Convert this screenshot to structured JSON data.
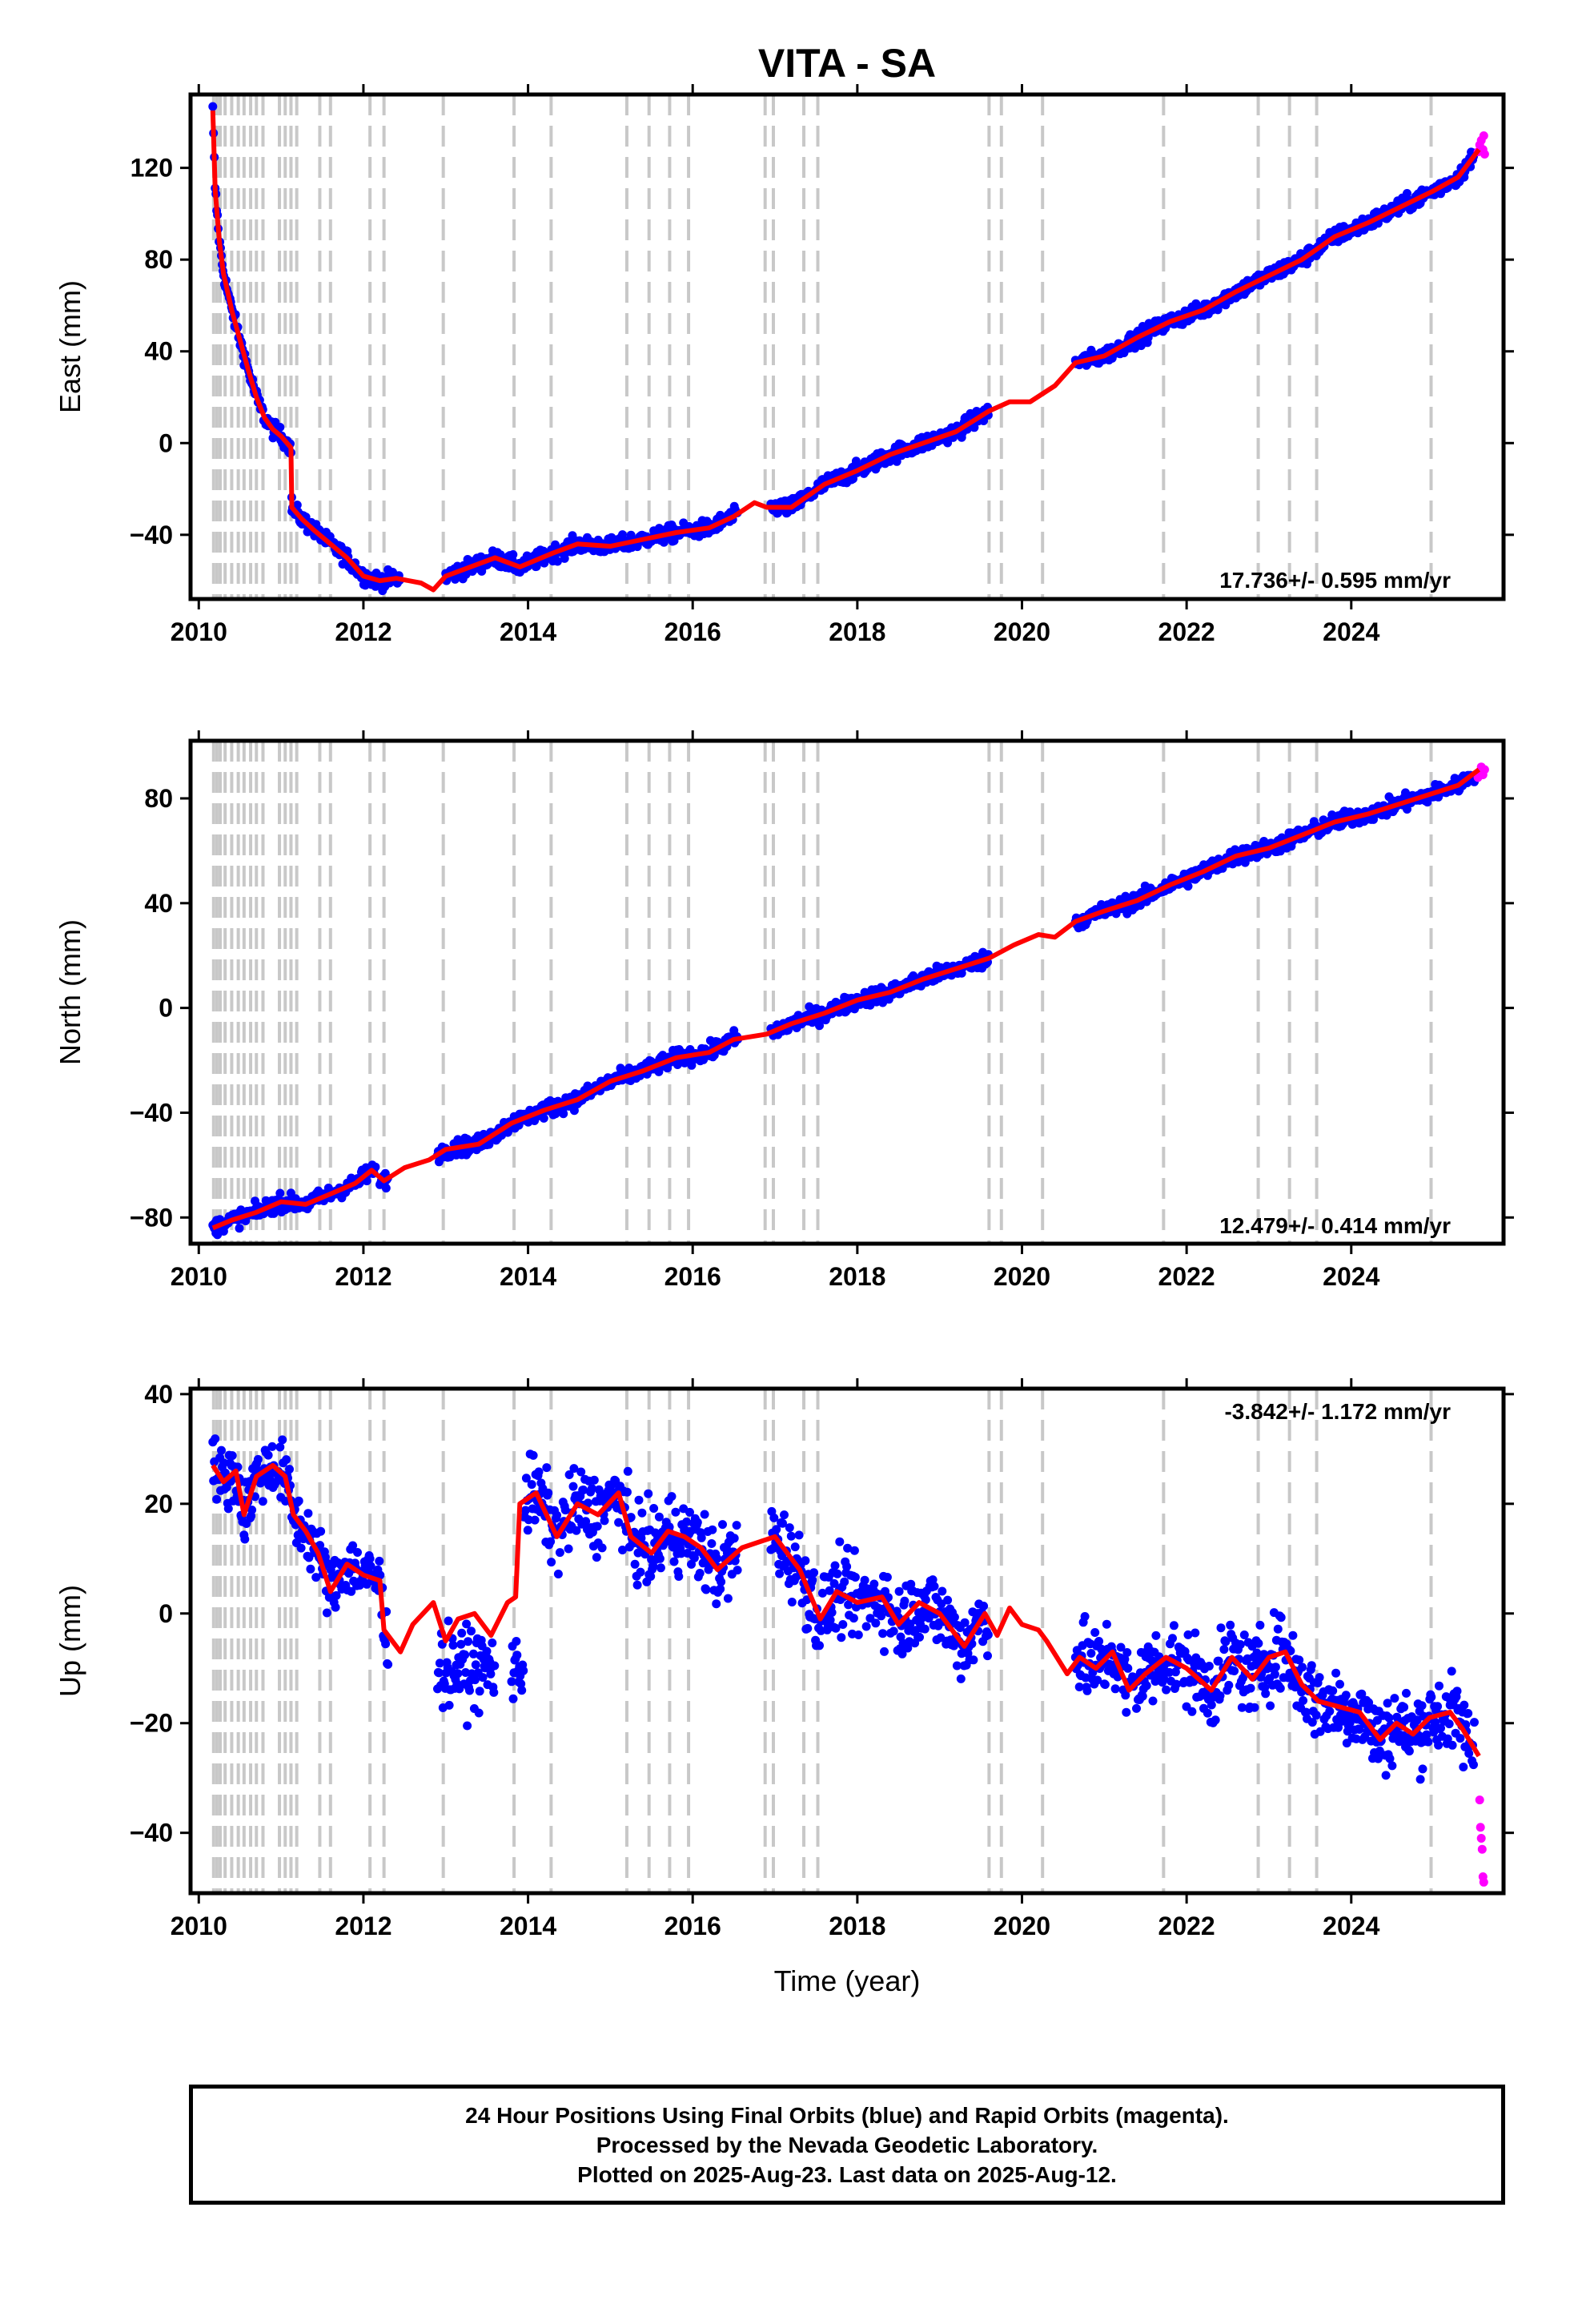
{
  "footer": {
    "line1": "24 Hour Positions Using Final Orbits (blue) and Rapid Orbits (magenta).",
    "line2": "Processed by the Nevada Geodetic Laboratory.",
    "line3": "Plotted on 2025-Aug-23. Last data on 2025-Aug-12."
  },
  "colors": {
    "final_orbits": "#0000ff",
    "rapid_orbits": "#ff00ff",
    "model": "#ff0000",
    "equipment_change_lines": "#c8c8c8"
  },
  "chart_data": [
    {
      "type": "scatter",
      "title": "VITA - SA",
      "xlabel": "",
      "ylabel": "East (mm)",
      "xlim": [
        2009.9,
        2025.85
      ],
      "ylim": [
        -68,
        152
      ],
      "xticks": [
        2010,
        2012,
        2014,
        2016,
        2018,
        2020,
        2022,
        2024
      ],
      "yticks": [
        -40,
        0,
        40,
        80,
        120
      ],
      "rate_label": "17.736+/- 0.595 mm/yr",
      "grid": false,
      "model_curve": {
        "name": "model",
        "x": [
          2010.17,
          2010.2,
          2010.25,
          2010.3,
          2010.35,
          2010.4,
          2010.5,
          2010.6,
          2010.7,
          2010.8,
          2010.9,
          2011.0,
          2011.12,
          2011.13,
          2011.25,
          2011.4,
          2011.6,
          2011.8,
          2012.0,
          2012.2,
          2012.4,
          2012.7,
          2012.85,
          2013.0,
          2013.3,
          2013.6,
          2013.9,
          2014.3,
          2014.6,
          2015.0,
          2015.4,
          2015.8,
          2016.2,
          2016.5,
          2016.75,
          2016.9,
          2017.2,
          2017.6,
          2018.0,
          2018.4,
          2018.8,
          2019.2,
          2019.6,
          2019.85,
          2020.1,
          2020.4,
          2020.65,
          2021.0,
          2021.4,
          2021.8,
          2022.2,
          2022.6,
          2023.0,
          2023.4,
          2023.8,
          2024.2,
          2024.6,
          2025.0,
          2025.3,
          2025.55
        ],
        "y": [
          145,
          110,
          88,
          74,
          66,
          58,
          45,
          32,
          20,
          11,
          6,
          3,
          -2,
          -28,
          -33,
          -38,
          -44,
          -50,
          -58,
          -60,
          -59,
          -61,
          -64,
          -58,
          -54,
          -50,
          -54,
          -48,
          -44,
          -45,
          -42,
          -39,
          -37,
          -32,
          -26,
          -28,
          -28,
          -18,
          -12,
          -5,
          0,
          5,
          14,
          18,
          18,
          25,
          35,
          38,
          46,
          53,
          58,
          66,
          73,
          80,
          90,
          96,
          103,
          110,
          116,
          128
        ]
      },
      "final_orbits": [
        {
          "x_start": 2010.17,
          "x_end": 2011.13,
          "trend": "follows model",
          "scatter_mm": 2.5
        },
        {
          "x_start": 2011.13,
          "x_end": 2012.45,
          "trend": "follows model",
          "scatter_mm": 2.5
        },
        {
          "x_start": 2013.0,
          "x_end": 2016.55,
          "trend": "follows model",
          "scatter_mm": 2.5
        },
        {
          "x_start": 2016.95,
          "x_end": 2019.6,
          "trend": "follows model",
          "scatter_mm": 2.5
        },
        {
          "x_start": 2020.65,
          "x_end": 2025.5,
          "trend": "follows model",
          "scatter_mm": 2.5
        }
      ],
      "rapid_orbits": [
        {
          "x": 2025.54,
          "y": 127
        },
        {
          "x": 2025.56,
          "y": 130
        },
        {
          "x": 2025.58,
          "y": 132
        },
        {
          "x": 2025.6,
          "y": 128
        },
        {
          "x": 2025.61,
          "y": 134
        },
        {
          "x": 2025.62,
          "y": 126
        }
      ]
    },
    {
      "type": "scatter",
      "title": "",
      "xlabel": "",
      "ylabel": "North (mm)",
      "xlim": [
        2009.9,
        2025.85
      ],
      "ylim": [
        -90,
        102
      ],
      "xticks": [
        2010,
        2012,
        2014,
        2016,
        2018,
        2020,
        2022,
        2024
      ],
      "yticks": [
        -80,
        -40,
        0,
        40,
        80
      ],
      "rate_label": "12.479+/- 0.414 mm/yr",
      "grid": false,
      "model_curve": {
        "name": "model",
        "x": [
          2010.17,
          2010.4,
          2010.7,
          2011.0,
          2011.3,
          2011.6,
          2011.9,
          2012.1,
          2012.25,
          2012.5,
          2012.8,
          2013.0,
          2013.4,
          2013.8,
          2014.2,
          2014.6,
          2015.0,
          2015.4,
          2015.8,
          2016.2,
          2016.5,
          2016.9,
          2017.2,
          2017.6,
          2018.0,
          2018.4,
          2018.8,
          2019.2,
          2019.6,
          2019.9,
          2020.2,
          2020.4,
          2020.65,
          2021.0,
          2021.4,
          2021.8,
          2022.2,
          2022.6,
          2023.0,
          2023.4,
          2023.8,
          2024.2,
          2024.6,
          2025.0,
          2025.3,
          2025.55
        ],
        "y": [
          -84,
          -81,
          -78,
          -74,
          -75,
          -71,
          -67,
          -62,
          -66,
          -61,
          -58,
          -54,
          -52,
          -44,
          -39,
          -35,
          -28,
          -24,
          -19,
          -17,
          -12,
          -10,
          -6,
          -2,
          3,
          6,
          11,
          15,
          19,
          24,
          28,
          27,
          33,
          37,
          41,
          47,
          52,
          58,
          61,
          66,
          71,
          74,
          78,
          82,
          85,
          91
        ]
      },
      "final_orbits": [
        {
          "x_start": 2010.17,
          "x_end": 2012.15,
          "trend": "follows model",
          "scatter_mm": 2.2
        },
        {
          "x_start": 2012.2,
          "x_end": 2012.3,
          "trend": "follows model",
          "scatter_mm": 2.2
        },
        {
          "x_start": 2012.9,
          "x_end": 2016.55,
          "trend": "follows model",
          "scatter_mm": 2.2
        },
        {
          "x_start": 2016.95,
          "x_end": 2019.6,
          "trend": "follows model",
          "scatter_mm": 2.2
        },
        {
          "x_start": 2020.65,
          "x_end": 2025.5,
          "trend": "follows model",
          "scatter_mm": 2.2
        }
      ],
      "rapid_orbits": [
        {
          "x": 2025.54,
          "y": 88
        },
        {
          "x": 2025.56,
          "y": 90
        },
        {
          "x": 2025.58,
          "y": 92
        },
        {
          "x": 2025.6,
          "y": 89
        },
        {
          "x": 2025.62,
          "y": 91
        }
      ]
    },
    {
      "type": "scatter",
      "title": "",
      "xlabel": "Time (year)",
      "ylabel": "Up (mm)",
      "xlim": [
        2009.9,
        2025.85
      ],
      "ylim": [
        -51,
        41
      ],
      "xticks": [
        2010,
        2012,
        2014,
        2016,
        2018,
        2020,
        2022,
        2024
      ],
      "yticks": [
        -40,
        -20,
        0,
        20,
        40
      ],
      "rate_label": "-3.842+/- 1.172 mm/yr",
      "grid": false,
      "model_curve": {
        "name": "model",
        "x": [
          2010.17,
          2010.3,
          2010.45,
          2010.55,
          2010.7,
          2010.9,
          2011.05,
          2011.15,
          2011.3,
          2011.45,
          2011.6,
          2011.8,
          2012.0,
          2012.2,
          2012.25,
          2012.45,
          2012.6,
          2012.85,
          2013.0,
          2013.15,
          2013.35,
          2013.55,
          2013.75,
          2013.85,
          2013.9,
          2014.1,
          2014.35,
          2014.6,
          2014.85,
          2015.1,
          2015.25,
          2015.5,
          2015.7,
          2015.9,
          2016.1,
          2016.3,
          2016.6,
          2016.8,
          2017.0,
          2017.3,
          2017.55,
          2017.75,
          2018.0,
          2018.3,
          2018.5,
          2018.75,
          2019.0,
          2019.3,
          2019.55,
          2019.7,
          2019.85,
          2020.0,
          2020.2,
          2020.3,
          2020.55,
          2020.7,
          2020.9,
          2021.1,
          2021.3,
          2021.5,
          2021.75,
          2022.0,
          2022.3,
          2022.55,
          2022.8,
          2023.0,
          2023.2,
          2023.4,
          2023.6,
          2023.85,
          2024.1,
          2024.35,
          2024.55,
          2024.75,
          2024.95,
          2025.2,
          2025.35,
          2025.55
        ],
        "y": [
          27,
          24,
          26,
          18,
          25,
          27,
          25,
          18,
          15,
          11,
          4,
          9,
          7,
          6,
          -3,
          -7,
          -2,
          2,
          -5,
          -1,
          0,
          -4,
          2,
          3,
          20,
          22,
          14,
          20,
          18,
          22,
          14,
          11,
          15,
          14,
          12,
          8,
          12,
          13,
          14,
          8,
          -1,
          4,
          2,
          3,
          -2,
          2,
          0,
          -6,
          0,
          -4,
          1,
          -2,
          -3,
          -5,
          -11,
          -8,
          -10,
          -7,
          -14,
          -11,
          -8,
          -10,
          -14,
          -8,
          -12,
          -8,
          -7,
          -13,
          -16,
          -17,
          -18,
          -23,
          -20,
          -22,
          -19,
          -18,
          -21,
          -26
        ]
      },
      "final_orbits": [
        {
          "x_start": 2010.17,
          "x_end": 2012.3,
          "trend": "follows model",
          "scatter_mm": 4
        },
        {
          "x_start": 2012.9,
          "x_end": 2013.6,
          "trend": "cluster near -10",
          "scatter_mm": 5
        },
        {
          "x_start": 2013.8,
          "x_end": 2013.95,
          "trend": "cluster near -10",
          "scatter_mm": 4
        },
        {
          "x_start": 2013.95,
          "x_end": 2016.55,
          "trend": "follows model",
          "scatter_mm": 5
        },
        {
          "x_start": 2016.95,
          "x_end": 2019.6,
          "trend": "follows model",
          "scatter_mm": 5
        },
        {
          "x_start": 2020.65,
          "x_end": 2025.5,
          "trend": "follows model",
          "scatter_mm": 5
        }
      ],
      "rapid_orbits": [
        {
          "x": 2025.56,
          "y": -34
        },
        {
          "x": 2025.57,
          "y": -39
        },
        {
          "x": 2025.58,
          "y": -41
        },
        {
          "x": 2025.59,
          "y": -43
        },
        {
          "x": 2025.6,
          "y": -48
        },
        {
          "x": 2025.61,
          "y": -49
        }
      ]
    }
  ],
  "equipment_change_years": [
    2010.18,
    2010.22,
    2010.26,
    2010.32,
    2010.4,
    2010.48,
    2010.55,
    2010.63,
    2010.7,
    2010.78,
    2010.98,
    2011.05,
    2011.12,
    2011.19,
    2011.47,
    2011.6,
    2012.08,
    2012.25,
    2012.97,
    2013.83,
    2014.28,
    2015.2,
    2015.47,
    2015.72,
    2015.95,
    2016.88,
    2016.98,
    2017.35,
    2017.52,
    2019.6,
    2019.75,
    2020.25,
    2021.72,
    2022.87,
    2023.25,
    2023.58,
    2024.97
  ]
}
